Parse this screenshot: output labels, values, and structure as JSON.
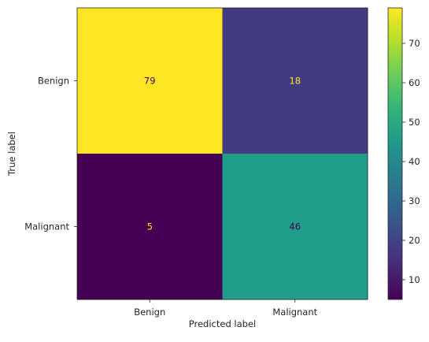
{
  "chart_data": {
    "type": "heatmap",
    "title": "",
    "xlabel": "Predicted label",
    "ylabel": "True label",
    "x_categories": [
      "Benign",
      "Malignant"
    ],
    "y_categories": [
      "Benign",
      "Malignant"
    ],
    "matrix": [
      [
        79,
        18
      ],
      [
        5,
        46
      ]
    ],
    "colormap": "viridis",
    "colorbar": {
      "range": [
        5,
        79
      ],
      "ticks": [
        10,
        20,
        30,
        40,
        50,
        60,
        70
      ],
      "tick_labels": [
        "10",
        "20",
        "30",
        "40",
        "50",
        "60",
        "70"
      ]
    },
    "grid": false,
    "cell_label_colors": {
      "on_dark": "#fde725",
      "on_light": "#440154"
    }
  }
}
